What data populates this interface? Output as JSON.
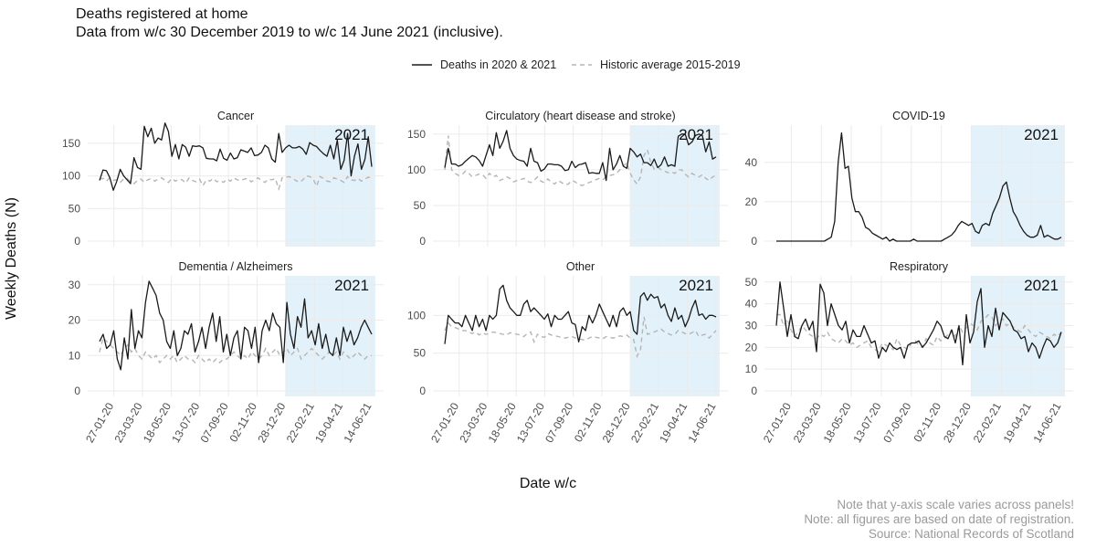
{
  "header": {
    "title_line1": "Deaths registered at home",
    "title_line2": "Data from w/c 30 December 2019 to w/c 14 June 2021 (inclusive)."
  },
  "legend": {
    "series1_label": "Deaths in 2020 & 2021",
    "series2_label": "Historic average 2015-2019"
  },
  "axes": {
    "ylabel": "Weekly Deaths (N)",
    "xlabel": "Date w/c"
  },
  "notes": {
    "line1": "Note that y-axis scale varies across panels!",
    "line2": "Note: all figures are based on date of registration.",
    "line3": "Source: National Records of Scotland"
  },
  "colors": {
    "actual": "#1a1a1a",
    "historic": "#b5b5b5",
    "highlight": "#e2f1fa",
    "grid": "#ebebeb"
  },
  "chart_data": {
    "type": "line",
    "xaxis_ticks": [
      "27-01-20",
      "23-03-20",
      "18-05-20",
      "13-07-20",
      "07-09-20",
      "02-11-20",
      "28-12-20",
      "22-02-21",
      "19-04-21",
      "14-06-21"
    ],
    "x_start": "2019-12-30",
    "x_end": "2021-06-14",
    "highlight": {
      "label": "2021",
      "start": "2021-01-04",
      "end": "2021-06-14"
    },
    "panels": [
      {
        "title": "Cancer",
        "ylim": [
          0,
          175
        ],
        "yticks": [
          0,
          50,
          100,
          150
        ],
        "actual": [
          93,
          109,
          108,
          97,
          78,
          92,
          110,
          100,
          94,
          88,
          128,
          113,
          110,
          176,
          160,
          173,
          150,
          158,
          155,
          181,
          168,
          130,
          148,
          126,
          148,
          144,
          130,
          146,
          145,
          146,
          143,
          127,
          126,
          126,
          123,
          141,
          127,
          124,
          135,
          126,
          128,
          140,
          138,
          136,
          143,
          131,
          132,
          136,
          147,
          143,
          126,
          121,
          165,
          136,
          143,
          147,
          143,
          143,
          145,
          141,
          133,
          151,
          147,
          145,
          139,
          134,
          130,
          147,
          126,
          155,
          110,
          124,
          165,
          100,
          130,
          149,
          110,
          125,
          160,
          114
        ],
        "historic": [
          95,
          96,
          92,
          97,
          93,
          94,
          90,
          95,
          96,
          91,
          88,
          93,
          95,
          90,
          94,
          96,
          92,
          95,
          97,
          93,
          90,
          96,
          92,
          95,
          94,
          89,
          97,
          93,
          91,
          95,
          85,
          94,
          92,
          96,
          91,
          93,
          90,
          95,
          92,
          97,
          94,
          93,
          95,
          96,
          91,
          94,
          97,
          93,
          90,
          95,
          94,
          96,
          80,
          97,
          98,
          99,
          96,
          93,
          90,
          94,
          100,
          99,
          95,
          84,
          99,
          96,
          92,
          91,
          97,
          95,
          93,
          90,
          99,
          94,
          93,
          96,
          92,
          95,
          98,
          97
        ]
      },
      {
        "title": "Circulatory (heart disease and stroke)",
        "ylim": [
          0,
          160
        ],
        "yticks": [
          0,
          50,
          100,
          150
        ],
        "actual": [
          103,
          130,
          108,
          108,
          105,
          107,
          112,
          116,
          120,
          118,
          113,
          105,
          120,
          135,
          120,
          152,
          130,
          140,
          155,
          130,
          120,
          115,
          113,
          112,
          105,
          130,
          112,
          110,
          98,
          101,
          108,
          108,
          107,
          107,
          105,
          99,
          100,
          112,
          103,
          107,
          108,
          110,
          95,
          96,
          95,
          95,
          110,
          85,
          130,
          100,
          108,
          120,
          105,
          102,
          130,
          125,
          118,
          122,
          110,
          110,
          106,
          115,
          103,
          107,
          118,
          105,
          107,
          105,
          147,
          150,
          150,
          135,
          139,
          148,
          150,
          148,
          125,
          139,
          115,
          118
        ],
        "historic": [
          100,
          148,
          100,
          95,
          92,
          93,
          98,
          95,
          90,
          92,
          94,
          93,
          88,
          95,
          90,
          92,
          85,
          87,
          90,
          88,
          83,
          85,
          86,
          88,
          84,
          82,
          85,
          90,
          84,
          82,
          87,
          83,
          80,
          85,
          82,
          79,
          80,
          85,
          83,
          79,
          78,
          80,
          82,
          84,
          86,
          88,
          86,
          90,
          92,
          93,
          95,
          100,
          105,
          110,
          95,
          86,
          80,
          90,
          120,
          128,
          110,
          101,
          104,
          100,
          98,
          96,
          97,
          95,
          100,
          100,
          94,
          90,
          95,
          92,
          90,
          93,
          88,
          85,
          90,
          92
        ]
      },
      {
        "title": "COVID-19",
        "ylim": [
          0,
          58
        ],
        "yticks": [
          0,
          20,
          40
        ],
        "actual": [
          0,
          0,
          0,
          0,
          0,
          0,
          0,
          0,
          0,
          0,
          0,
          0,
          0,
          0,
          0,
          1,
          2,
          10,
          40,
          55,
          37,
          38,
          22,
          15,
          15,
          12,
          7,
          6,
          4,
          3,
          2,
          1,
          2,
          0,
          1,
          0,
          0,
          0,
          0,
          0,
          1,
          0,
          0,
          0,
          0,
          0,
          0,
          0,
          0,
          1,
          2,
          3,
          5,
          8,
          10,
          9,
          8,
          9,
          5,
          4,
          8,
          9,
          8,
          14,
          18,
          22,
          28,
          30,
          22,
          15,
          12,
          8,
          5,
          3,
          2,
          2,
          3,
          8,
          2,
          3,
          2,
          1,
          1,
          2
        ],
        "historic": []
      },
      {
        "title": "Dementia / Alzheimers",
        "ylim": [
          0,
          32
        ],
        "yticks": [
          0,
          10,
          20,
          30
        ],
        "actual": [
          14,
          16,
          12,
          13,
          17,
          9,
          6,
          15,
          9,
          23,
          12,
          17,
          15,
          25,
          31,
          29,
          27,
          22,
          20,
          14,
          12,
          17,
          10,
          12,
          17,
          16,
          19,
          11,
          14,
          18,
          12,
          18,
          22,
          14,
          21,
          11,
          16,
          10,
          15,
          17,
          9,
          18,
          17,
          12,
          18,
          8,
          17,
          20,
          17,
          22,
          19,
          18,
          8,
          25,
          16,
          12,
          21,
          18,
          26,
          15,
          17,
          13,
          19,
          12,
          16,
          11,
          10,
          15,
          10,
          18,
          14,
          17,
          13,
          15,
          18,
          20,
          18,
          16
        ],
        "historic": [
          11,
          15,
          14,
          13,
          12,
          11,
          10,
          12,
          13,
          11,
          12,
          10,
          9,
          11,
          10,
          9,
          10,
          8,
          9,
          10,
          9,
          10,
          8,
          9,
          10,
          9,
          9,
          8,
          10,
          9,
          8,
          9,
          8,
          9,
          8,
          9,
          9,
          10,
          11,
          10,
          9,
          10,
          9,
          11,
          10,
          9,
          10,
          12,
          10,
          11,
          12,
          10,
          11,
          12,
          10,
          11,
          12,
          9,
          10,
          11,
          12,
          11,
          10,
          9,
          10,
          11,
          10,
          11,
          9,
          11,
          10,
          9,
          10,
          11,
          10,
          9,
          10,
          10
        ]
      },
      {
        "title": "Other",
        "ylim": [
          0,
          150
        ],
        "yticks": [
          0,
          50,
          100
        ],
        "actual": [
          62,
          100,
          95,
          90,
          90,
          85,
          100,
          90,
          80,
          100,
          85,
          95,
          80,
          100,
          95,
          100,
          135,
          140,
          120,
          110,
          105,
          100,
          100,
          115,
          120,
          105,
          110,
          105,
          100,
          95,
          102,
          85,
          100,
          95,
          95,
          100,
          105,
          90,
          88,
          65,
          85,
          80,
          100,
          90,
          100,
          115,
          105,
          95,
          85,
          100,
          85,
          105,
          110,
          100,
          105,
          80,
          75,
          125,
          130,
          120,
          128,
          123,
          125,
          110,
          115,
          100,
          92,
          110,
          95,
          100,
          85,
          95,
          110,
          120,
          100,
          102,
          95,
          100,
          100,
          98
        ],
        "historic": [
          80,
          90,
          85,
          84,
          82,
          80,
          80,
          78,
          76,
          78,
          74,
          77,
          75,
          76,
          78,
          77,
          76,
          75,
          74,
          77,
          76,
          75,
          74,
          72,
          76,
          78,
          65,
          75,
          72,
          71,
          76,
          74,
          73,
          72,
          71,
          70,
          71,
          72,
          70,
          69,
          68,
          67,
          70,
          72,
          71,
          70,
          69,
          72,
          71,
          70,
          71,
          73,
          72,
          74,
          70,
          68,
          46,
          55,
          98,
          75,
          76,
          78,
          80,
          82,
          78,
          76,
          74,
          75,
          80,
          78,
          76,
          75,
          77,
          80,
          72,
          74,
          75,
          70,
          75,
          80
        ]
      },
      {
        "title": "Respiratory",
        "ylim": [
          0,
          52
        ],
        "yticks": [
          0,
          10,
          20,
          30,
          40,
          50
        ],
        "actual": [
          30,
          50,
          38,
          25,
          35,
          25,
          24,
          30,
          33,
          28,
          32,
          18,
          49,
          45,
          30,
          40,
          35,
          30,
          28,
          32,
          22,
          28,
          25,
          25,
          30,
          26,
          22,
          23,
          15,
          20,
          18,
          22,
          20,
          19,
          20,
          15,
          21,
          22,
          22,
          23,
          20,
          22,
          25,
          28,
          32,
          30,
          25,
          24,
          28,
          22,
          30,
          12,
          35,
          22,
          27,
          41,
          47,
          20,
          30,
          25,
          38,
          28,
          36,
          34,
          32,
          28,
          27,
          24,
          25,
          18,
          22,
          20,
          15,
          20,
          24,
          23,
          20,
          22,
          27
        ],
        "historic": [
          35,
          35,
          30,
          33,
          28,
          25,
          27,
          30,
          28,
          26,
          25,
          24,
          26,
          25,
          27,
          24,
          23,
          22,
          24,
          23,
          21,
          22,
          20,
          21,
          22,
          23,
          20,
          19,
          18,
          22,
          21,
          20,
          19,
          24,
          21,
          20,
          19,
          22,
          23,
          21,
          20,
          24,
          22,
          21,
          25,
          23,
          24,
          26,
          28,
          25,
          30,
          27,
          29,
          31,
          30,
          28,
          32,
          33,
          35,
          34,
          30,
          32,
          33,
          30,
          31,
          29,
          28,
          27,
          30,
          28,
          26,
          25,
          27,
          26,
          25,
          24,
          26,
          25,
          27
        ]
      }
    ]
  }
}
